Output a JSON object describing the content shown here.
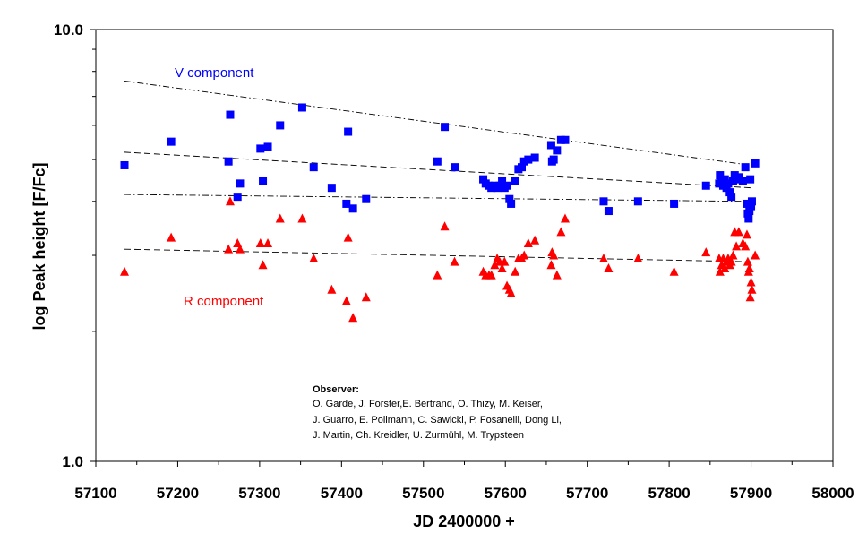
{
  "chart_data": {
    "type": "scatter",
    "xlabel": "JD 2400000 +",
    "ylabel": "log Peak height [F/Fc]",
    "xlim": [
      57100,
      58000
    ],
    "ylim": [
      1.0,
      10.0
    ],
    "yscale": "log",
    "x_ticks": [
      "57100",
      "57200",
      "57300",
      "57400",
      "57500",
      "57600",
      "57700",
      "57800",
      "57900",
      "58000"
    ],
    "y_ticks": [
      "1.0",
      "10.0"
    ],
    "series": [
      {
        "name": "V component",
        "color": "#0000ff",
        "marker": "square",
        "points": [
          [
            57135,
            4.85
          ],
          [
            57192,
            5.5
          ],
          [
            57262,
            4.95
          ],
          [
            57264,
            6.35
          ],
          [
            57273,
            4.1
          ],
          [
            57276,
            4.4
          ],
          [
            57301,
            5.3
          ],
          [
            57304,
            4.45
          ],
          [
            57310,
            5.35
          ],
          [
            57325,
            6.0
          ],
          [
            57352,
            6.6
          ],
          [
            57366,
            4.8
          ],
          [
            57388,
            4.3
          ],
          [
            57406,
            3.95
          ],
          [
            57408,
            5.8
          ],
          [
            57414,
            3.85
          ],
          [
            57430,
            4.05
          ],
          [
            57517,
            4.95
          ],
          [
            57526,
            5.95
          ],
          [
            57538,
            4.8
          ],
          [
            57573,
            4.5
          ],
          [
            57576,
            4.4
          ],
          [
            57580,
            4.35
          ],
          [
            57583,
            4.3
          ],
          [
            57587,
            4.35
          ],
          [
            57590,
            4.3
          ],
          [
            57593,
            4.35
          ],
          [
            57596,
            4.45
          ],
          [
            57599,
            4.3
          ],
          [
            57602,
            4.35
          ],
          [
            57605,
            4.05
          ],
          [
            57607,
            3.95
          ],
          [
            57612,
            4.45
          ],
          [
            57616,
            4.75
          ],
          [
            57620,
            4.8
          ],
          [
            57623,
            4.95
          ],
          [
            57628,
            5.0
          ],
          [
            57636,
            5.05
          ],
          [
            57656,
            5.4
          ],
          [
            57657,
            4.95
          ],
          [
            57659,
            5.0
          ],
          [
            57663,
            5.25
          ],
          [
            57668,
            5.55
          ],
          [
            57673,
            5.55
          ],
          [
            57720,
            4.0
          ],
          [
            57726,
            3.8
          ],
          [
            57762,
            4.0
          ],
          [
            57806,
            3.95
          ],
          [
            57845,
            4.35
          ],
          [
            57861,
            4.4
          ],
          [
            57862,
            4.6
          ],
          [
            57864,
            4.45
          ],
          [
            57866,
            4.35
          ],
          [
            57868,
            4.5
          ],
          [
            57870,
            4.3
          ],
          [
            57872,
            4.4
          ],
          [
            57874,
            4.2
          ],
          [
            57876,
            4.1
          ],
          [
            57878,
            4.45
          ],
          [
            57880,
            4.6
          ],
          [
            57882,
            4.5
          ],
          [
            57885,
            4.55
          ],
          [
            57890,
            4.45
          ],
          [
            57893,
            4.8
          ],
          [
            57895,
            3.95
          ],
          [
            57896,
            3.75
          ],
          [
            57897,
            3.65
          ],
          [
            57898,
            3.8
          ],
          [
            57899,
            4.5
          ],
          [
            57900,
            3.9
          ],
          [
            57901,
            4.0
          ],
          [
            57905,
            4.9
          ]
        ]
      },
      {
        "name": "R component",
        "color": "#ff0000",
        "marker": "triangle",
        "points": [
          [
            57135,
            2.75
          ],
          [
            57192,
            3.3
          ],
          [
            57262,
            3.1
          ],
          [
            57264,
            4.0
          ],
          [
            57273,
            3.2
          ],
          [
            57276,
            3.1
          ],
          [
            57301,
            3.2
          ],
          [
            57304,
            2.85
          ],
          [
            57310,
            3.2
          ],
          [
            57325,
            3.65
          ],
          [
            57352,
            3.65
          ],
          [
            57366,
            2.95
          ],
          [
            57388,
            2.5
          ],
          [
            57406,
            2.35
          ],
          [
            57408,
            3.3
          ],
          [
            57414,
            2.15
          ],
          [
            57430,
            2.4
          ],
          [
            57517,
            2.7
          ],
          [
            57526,
            3.5
          ],
          [
            57538,
            2.9
          ],
          [
            57573,
            2.75
          ],
          [
            57576,
            2.7
          ],
          [
            57580,
            2.7
          ],
          [
            57583,
            2.7
          ],
          [
            57587,
            2.85
          ],
          [
            57590,
            2.95
          ],
          [
            57593,
            2.9
          ],
          [
            57596,
            2.8
          ],
          [
            57599,
            2.9
          ],
          [
            57602,
            2.55
          ],
          [
            57605,
            2.5
          ],
          [
            57607,
            2.45
          ],
          [
            57612,
            2.75
          ],
          [
            57616,
            2.95
          ],
          [
            57620,
            2.95
          ],
          [
            57623,
            3.0
          ],
          [
            57628,
            3.2
          ],
          [
            57636,
            3.25
          ],
          [
            57656,
            2.85
          ],
          [
            57657,
            3.05
          ],
          [
            57659,
            3.0
          ],
          [
            57663,
            2.7
          ],
          [
            57668,
            3.4
          ],
          [
            57673,
            3.65
          ],
          [
            57720,
            2.95
          ],
          [
            57726,
            2.8
          ],
          [
            57762,
            2.95
          ],
          [
            57806,
            2.75
          ],
          [
            57845,
            3.05
          ],
          [
            57861,
            2.95
          ],
          [
            57862,
            2.75
          ],
          [
            57864,
            2.85
          ],
          [
            57866,
            2.95
          ],
          [
            57868,
            2.8
          ],
          [
            57870,
            2.9
          ],
          [
            57872,
            2.95
          ],
          [
            57874,
            2.85
          ],
          [
            57876,
            2.9
          ],
          [
            57878,
            3.0
          ],
          [
            57880,
            3.4
          ],
          [
            57882,
            3.15
          ],
          [
            57885,
            3.4
          ],
          [
            57890,
            3.2
          ],
          [
            57893,
            3.15
          ],
          [
            57895,
            3.35
          ],
          [
            57896,
            2.9
          ],
          [
            57897,
            2.75
          ],
          [
            57898,
            2.8
          ],
          [
            57899,
            2.4
          ],
          [
            57900,
            2.6
          ],
          [
            57901,
            2.5
          ],
          [
            57905,
            3.0
          ]
        ]
      }
    ],
    "trend_lines": [
      {
        "name": "V upper envelope",
        "style": "dash-dot",
        "x": [
          57135,
          57900
        ],
        "y": [
          7.6,
          4.85
        ]
      },
      {
        "name": "V mean trend",
        "style": "dashed",
        "x": [
          57135,
          57900
        ],
        "y": [
          5.2,
          4.3
        ]
      },
      {
        "name": "V lower envelope",
        "style": "dash-dot",
        "x": [
          57135,
          57900
        ],
        "y": [
          4.15,
          4.0
        ]
      },
      {
        "name": "R mean trend",
        "style": "dashed",
        "x": [
          57135,
          57900
        ],
        "y": [
          3.1,
          2.9
        ]
      }
    ],
    "annotations": {
      "v_label": "V component",
      "r_label": "R component",
      "observer_title": "Observer:",
      "observer_lines": [
        "O. Garde, J. Forster,E. Bertrand, O. Thizy, M. Keiser,",
        "J. Guarro, E. Pollmann, C. Sawicki, P. Fosanelli, Dong Li,",
        "J. Martin, Ch. Kreidler, U. Zurmühl, M. Trypsteen"
      ]
    }
  }
}
